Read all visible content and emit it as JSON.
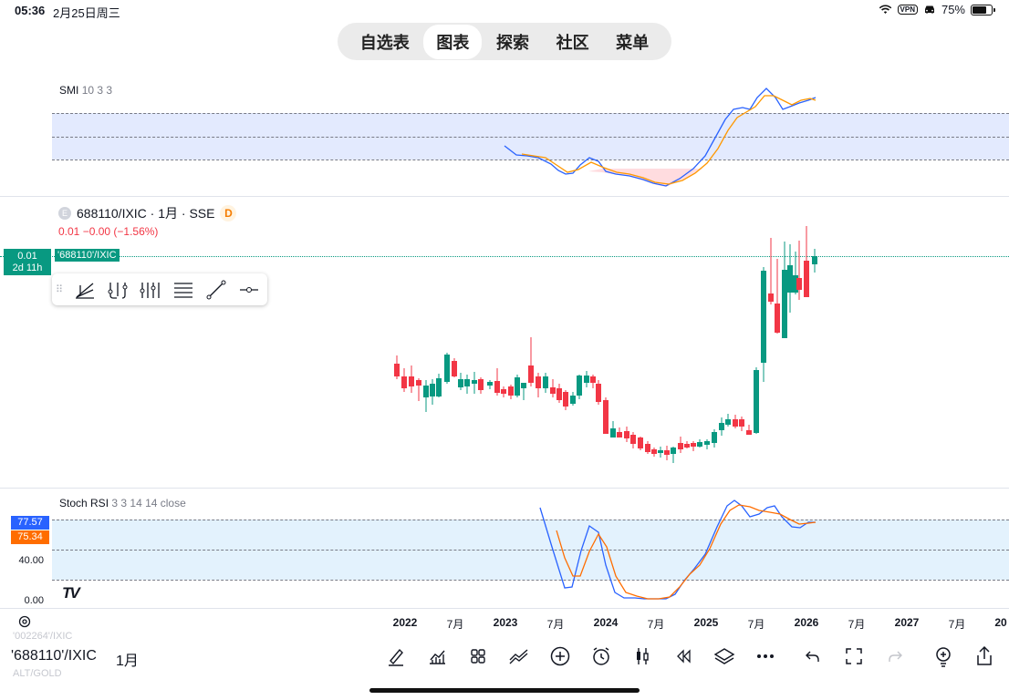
{
  "status": {
    "time": "05:36",
    "date": "2月25日周三",
    "vpn": "VPN",
    "battery": "75%"
  },
  "nav": {
    "tabs": [
      "自选表",
      "图表",
      "探索",
      "社区",
      "菜单"
    ],
    "active_index": 1
  },
  "smi": {
    "name": "SMI",
    "params": "10 3 3"
  },
  "symbol": {
    "name": "688110/IXIC",
    "interval": "1月",
    "exchange": "SSE",
    "title": "688110/IXIC · 1月 · SSE",
    "badge": "D",
    "small_icon": "E",
    "change": "0.01  −0.00 (−1.56%)",
    "price": "0.01",
    "countdown": "2d 11h",
    "tag": "'688110'/IXIC"
  },
  "stoch": {
    "name": "Stoch RSI",
    "params": "3 3 14 14 close",
    "k_value": "77.57",
    "d_value": "75.34",
    "ticks": [
      "40.00",
      "0.00"
    ]
  },
  "colors": {
    "up": "#089981",
    "down": "#f23645",
    "blue": "#2962ff",
    "orange": "#ff6d00",
    "band": "#e3eafe",
    "stoch_band": "#e3f2fd"
  },
  "xaxis": [
    {
      "label": "2022",
      "year": true
    },
    {
      "label": "7月",
      "year": false
    },
    {
      "label": "2023",
      "year": true
    },
    {
      "label": "7月",
      "year": false
    },
    {
      "label": "2024",
      "year": true
    },
    {
      "label": "7月",
      "year": false
    },
    {
      "label": "2025",
      "year": true
    },
    {
      "label": "7月",
      "year": false
    },
    {
      "label": "2026",
      "year": true
    },
    {
      "label": "7月",
      "year": false
    },
    {
      "label": "2027",
      "year": true
    },
    {
      "label": "7月",
      "year": false
    },
    {
      "label": "20",
      "year": true
    }
  ],
  "bottom": {
    "symbol": "'688110'/IXIC",
    "interval": "1月",
    "ghost_above": "'002264'/IXIC",
    "ghost_below": "ALT/GOLD"
  },
  "tv_logo": "TV",
  "drawing_tools": [
    "trend-angle",
    "pitchfork",
    "fib-channel",
    "parallel-lines",
    "trend-line",
    "horizontal-ray"
  ],
  "bottom_tools": [
    "pencil-icon",
    "indicators-icon",
    "layout-grid-icon",
    "compare-icon",
    "add-circle-icon",
    "alarm-icon",
    "candles-icon",
    "replay-icon",
    "layers-icon",
    "more-icon",
    "undo-icon",
    "fullscreen-icon",
    "redo-icon",
    "idea-icon",
    "share-icon"
  ]
}
